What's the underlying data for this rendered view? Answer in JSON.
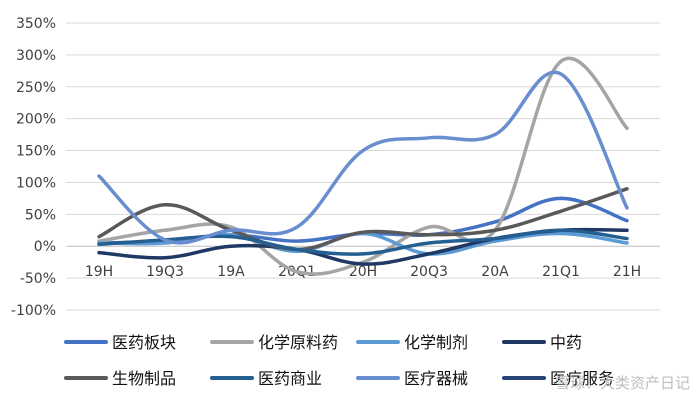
{
  "chart_data": {
    "type": "line",
    "categories": [
      "19H",
      "19Q3",
      "19A",
      "20Q1",
      "20H",
      "20Q3",
      "20A",
      "21Q1",
      "21H"
    ],
    "ylim": [
      -100,
      350
    ],
    "yticks": [
      -100,
      -50,
      0,
      50,
      100,
      150,
      200,
      250,
      300,
      350
    ],
    "ytick_labels": [
      "-100%",
      "-50%",
      "0%",
      "50%",
      "100%",
      "150%",
      "200%",
      "250%",
      "300%",
      "350%"
    ],
    "grid": true,
    "legend_position": "bottom",
    "series": [
      {
        "name": "医药板块",
        "color": "#4472C4",
        "values": [
          5,
          8,
          18,
          8,
          20,
          18,
          38,
          75,
          40
        ]
      },
      {
        "name": "化学原料药",
        "color": "#A5A5A5",
        "values": [
          8,
          25,
          30,
          -40,
          -25,
          30,
          25,
          290,
          185
        ]
      },
      {
        "name": "化学制剂",
        "color": "#5B9BD5",
        "values": [
          5,
          5,
          18,
          -8,
          20,
          -12,
          8,
          20,
          5
        ]
      },
      {
        "name": "中药",
        "color": "#1F3864",
        "values": [
          -10,
          -18,
          0,
          -5,
          -28,
          -12,
          12,
          25,
          25
        ]
      },
      {
        "name": "生物制品",
        "color": "#595959",
        "values": [
          15,
          65,
          25,
          -5,
          22,
          18,
          25,
          55,
          90
        ]
      },
      {
        "name": "医药商业",
        "color": "#255E91",
        "values": [
          3,
          10,
          15,
          -5,
          -12,
          5,
          12,
          25,
          12
        ]
      },
      {
        "name": "医疗器械",
        "color": "#698ED0",
        "values": [
          110,
          10,
          25,
          30,
          150,
          170,
          175,
          270,
          60
        ]
      },
      {
        "name": "医疗服务",
        "color": "#264478",
        "values": [
          0,
          0,
          0,
          0,
          0,
          0,
          0,
          0,
          0
        ]
      }
    ]
  },
  "watermark": "雪球：大类资产日记"
}
